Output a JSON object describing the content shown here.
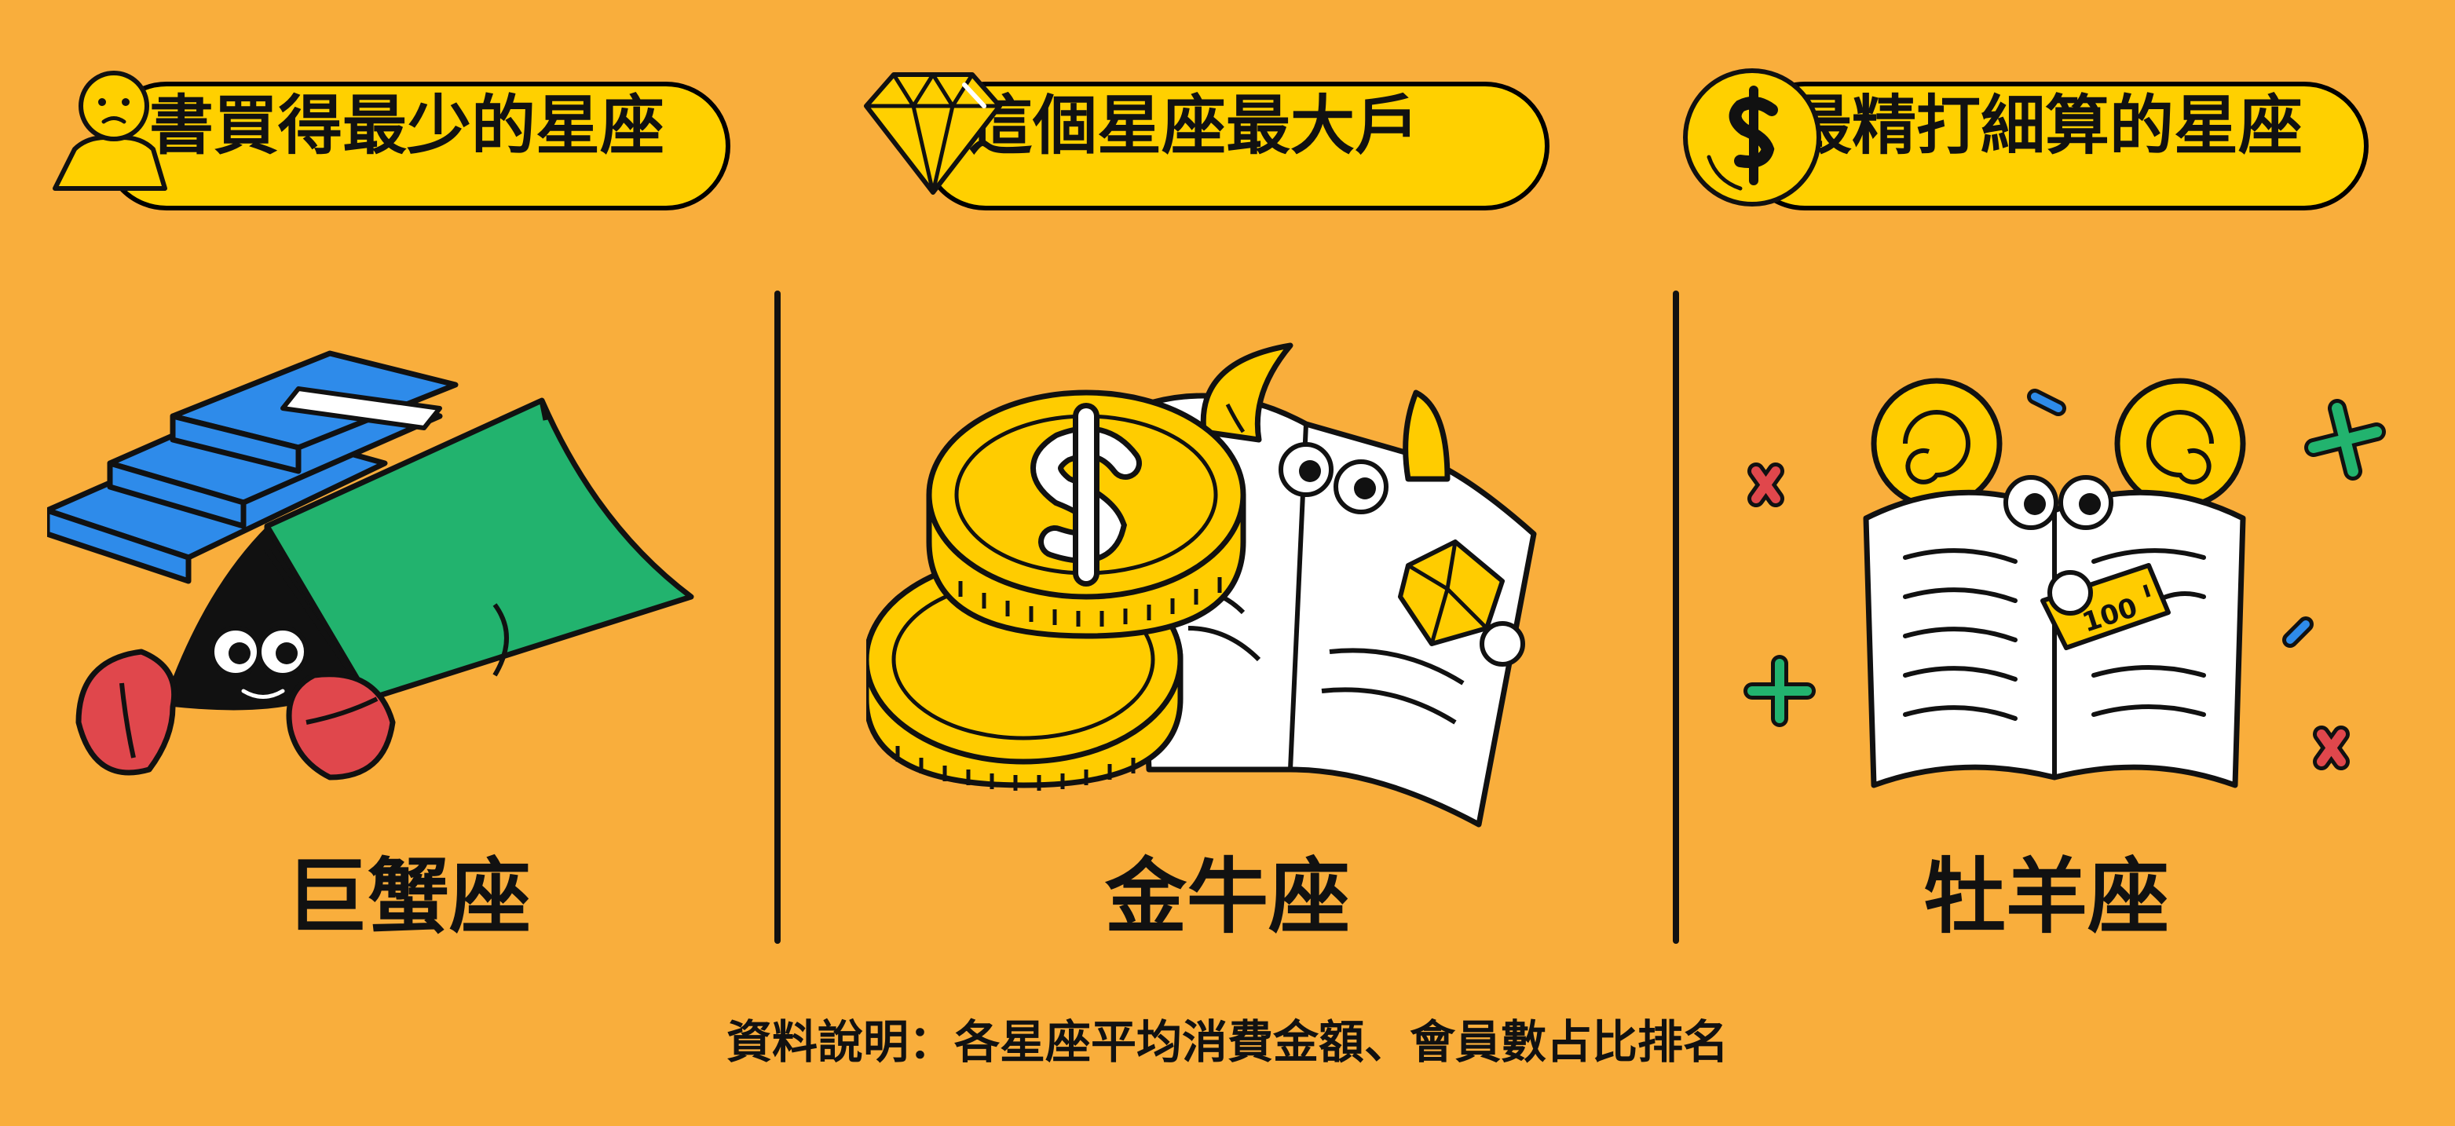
{
  "panels": [
    {
      "header_label": "書買得最少的星座",
      "header_icon": "person-icon",
      "sign_name": "巨蟹座",
      "illustration": "crab-hiding-under-book"
    },
    {
      "header_label": "這個星座最大戶",
      "header_icon": "diamond-icon",
      "sign_name": "金牛座",
      "illustration": "coins-and-bull-book"
    },
    {
      "header_label": "最精打細算的星座",
      "header_icon": "dollar-coin-icon",
      "sign_name": "牡羊座",
      "illustration": "ram-book-with-price-tag"
    }
  ],
  "price_tag_text": "100",
  "footnote": "資料說明：各星座平均消費金額、會員數占比排名",
  "colors": {
    "background": "#F9AE3C",
    "pill": "#FFD000",
    "outline": "#111111",
    "blue_book": "#2E8BEA",
    "green_book": "#22B36E",
    "crab_red": "#E0474C",
    "coin_gold": "#FFCC00",
    "cross_red": "#E0474C",
    "cross_green": "#22B36E",
    "dash_blue": "#2E8BEA"
  }
}
